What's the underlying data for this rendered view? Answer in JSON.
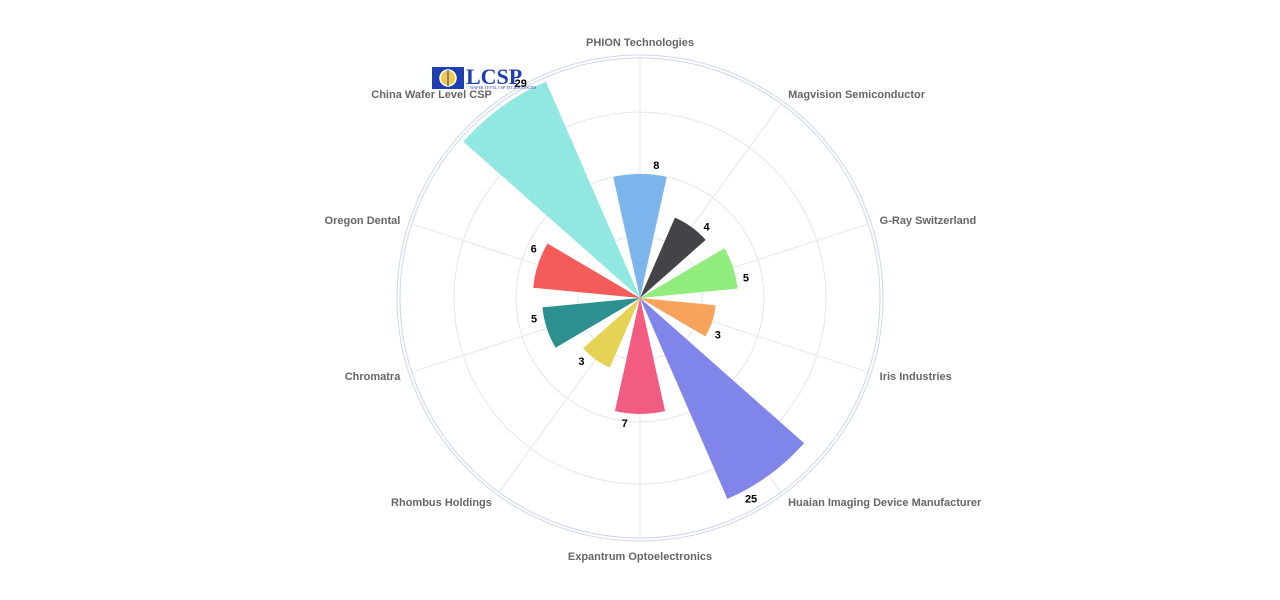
{
  "chart_data": {
    "type": "polar-bar",
    "title": "",
    "categories": [
      "PHION Technologies",
      "Magvision Semiconductor",
      "G-Ray Switzerland",
      "Iris Industries",
      "Huaian Imaging Device Manufacturer",
      "Expantrum Optoelectronics",
      "Rhombus Holdings",
      "Chromatra",
      "Oregon Dental",
      "China Wafer Level CSP"
    ],
    "values": [
      8,
      4,
      5,
      3,
      25,
      7,
      3,
      5,
      6,
      29
    ],
    "colors": [
      "#7cb5ec",
      "#434348",
      "#90ed7d",
      "#f7a35c",
      "#8085e9",
      "#f15c80",
      "#e4d354",
      "#2b908f",
      "#f45b5b",
      "#91e8e1"
    ],
    "rmax": 30,
    "grid": true,
    "legend": "none"
  },
  "logo": {
    "text": "LCSP",
    "subtext": "WAFER LEVEL CSP TECHNOLOGIES"
  }
}
